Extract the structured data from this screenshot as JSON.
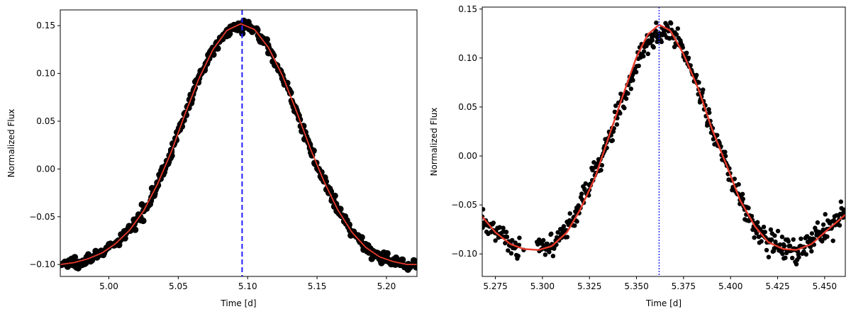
{
  "chart_data": [
    {
      "type": "scatter",
      "xlabel": "Time [d]",
      "ylabel": "Normalized Flux",
      "xlim": [
        4.965,
        5.222
      ],
      "ylim": [
        -0.1125,
        0.1665
      ],
      "xticks": [
        5.0,
        5.05,
        5.1,
        5.15,
        5.2
      ],
      "xtick_labels": [
        "5.00",
        "5.05",
        "5.10",
        "5.15",
        "5.20"
      ],
      "yticks": [
        -0.1,
        -0.05,
        0.0,
        0.05,
        0.1,
        0.15
      ],
      "ytick_labels": [
        "−0.10",
        "−0.05",
        "0.00",
        "0.05",
        "0.10",
        "0.15"
      ],
      "grid": false,
      "marker_color": "#000000",
      "fit_color": "#e8392b",
      "vline_color": "#1f1fff",
      "vline_style": "dashed",
      "vline_x": 5.096,
      "series": [
        {
          "kind": "points",
          "x": [
            4.965,
            4.975,
            4.985,
            4.995,
            5.005,
            5.015,
            5.025,
            5.035,
            5.045,
            5.055,
            5.065,
            5.075,
            5.085,
            5.095,
            5.105,
            5.115,
            5.125,
            5.135,
            5.145,
            5.155,
            5.165,
            5.175,
            5.185,
            5.195,
            5.205,
            5.215,
            5.222
          ],
          "y": [
            -0.1,
            -0.098,
            -0.094,
            -0.088,
            -0.078,
            -0.064,
            -0.044,
            -0.016,
            0.018,
            0.058,
            0.095,
            0.125,
            0.145,
            0.152,
            0.146,
            0.127,
            0.098,
            0.061,
            0.022,
            -0.013,
            -0.043,
            -0.066,
            -0.082,
            -0.092,
            -0.097,
            -0.1,
            -0.1
          ]
        },
        {
          "kind": "fit",
          "x": [
            4.965,
            4.975,
            4.985,
            4.995,
            5.005,
            5.015,
            5.025,
            5.035,
            5.045,
            5.055,
            5.065,
            5.075,
            5.085,
            5.095,
            5.105,
            5.115,
            5.125,
            5.135,
            5.145,
            5.155,
            5.165,
            5.175,
            5.185,
            5.195,
            5.205,
            5.215,
            5.222
          ],
          "y": [
            -0.1,
            -0.098,
            -0.094,
            -0.088,
            -0.078,
            -0.064,
            -0.044,
            -0.016,
            0.018,
            0.058,
            0.095,
            0.125,
            0.145,
            0.152,
            0.146,
            0.127,
            0.098,
            0.061,
            0.022,
            -0.013,
            -0.043,
            -0.066,
            -0.082,
            -0.092,
            -0.097,
            -0.1,
            -0.1
          ]
        }
      ]
    },
    {
      "type": "scatter",
      "xlabel": "Time [d]",
      "ylabel": "Normalized Flux",
      "xlim": [
        5.268,
        5.461
      ],
      "ylim": [
        -0.123,
        0.152
      ],
      "xticks": [
        5.275,
        5.3,
        5.325,
        5.35,
        5.375,
        5.4,
        5.425,
        5.45
      ],
      "xtick_labels": [
        "5.275",
        "5.300",
        "5.325",
        "5.350",
        "5.375",
        "5.400",
        "5.425",
        "5.450"
      ],
      "yticks": [
        -0.1,
        -0.05,
        0.0,
        0.05,
        0.1,
        0.15
      ],
      "ytick_labels": [
        "−0.10",
        "−0.05",
        "0.00",
        "0.05",
        "0.10",
        "0.15"
      ],
      "grid": false,
      "marker_color": "#000000",
      "fit_color": "#e8392b",
      "vline_color": "#1f1fff",
      "vline_style": "dotted",
      "vline_x": 5.362,
      "series": [
        {
          "kind": "points",
          "x": [
            5.268,
            5.275,
            5.283,
            5.29,
            5.305,
            5.31,
            5.318,
            5.325,
            5.333,
            5.34,
            5.348,
            5.355,
            5.368,
            5.375,
            5.383,
            5.39,
            5.398,
            5.405,
            5.413,
            5.42,
            5.428,
            5.435,
            5.443,
            5.45,
            5.461
          ],
          "y": [
            -0.062,
            -0.078,
            -0.09,
            -0.096,
            -0.09,
            -0.08,
            -0.058,
            -0.03,
            0.005,
            0.043,
            0.083,
            0.116,
            0.128,
            0.104,
            0.068,
            0.028,
            -0.01,
            -0.045,
            -0.072,
            -0.088,
            -0.095,
            -0.095,
            -0.088,
            -0.076,
            -0.06
          ]
        },
        {
          "kind": "fit",
          "x": [
            5.268,
            5.275,
            5.283,
            5.29,
            5.298,
            5.305,
            5.313,
            5.32,
            5.328,
            5.335,
            5.343,
            5.35,
            5.356,
            5.362,
            5.368,
            5.375,
            5.383,
            5.39,
            5.398,
            5.405,
            5.413,
            5.42,
            5.428,
            5.435,
            5.443,
            5.45,
            5.461
          ],
          "y": [
            -0.062,
            -0.078,
            -0.09,
            -0.095,
            -0.096,
            -0.092,
            -0.078,
            -0.055,
            -0.022,
            0.018,
            0.063,
            0.101,
            0.124,
            0.134,
            0.128,
            0.104,
            0.068,
            0.028,
            -0.01,
            -0.045,
            -0.072,
            -0.088,
            -0.095,
            -0.096,
            -0.09,
            -0.078,
            -0.06
          ]
        }
      ]
    }
  ]
}
